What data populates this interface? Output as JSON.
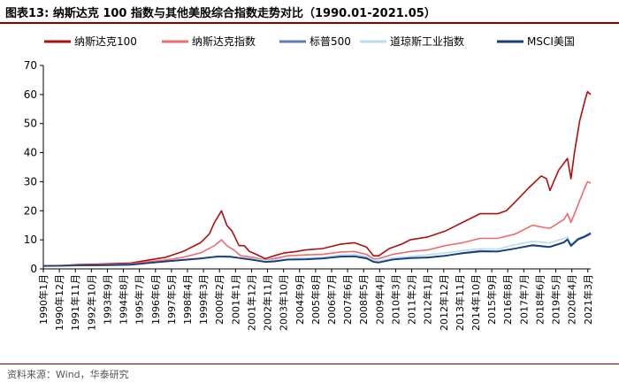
{
  "header": {
    "title": "图表13:  纳斯达克 100 指数与其他美股综合指数走势对比（1990.01-2021.05）"
  },
  "footer": {
    "source": "资料来源：Wind，华泰研究"
  },
  "chart_data": {
    "type": "line",
    "xlabel": "",
    "ylabel": "",
    "ylim": [
      0,
      70
    ],
    "yticks": [
      0,
      10,
      20,
      30,
      40,
      50,
      60,
      70
    ],
    "grid": false,
    "legend_position": "top",
    "x_tick_labels": [
      "1990年1月",
      "1990年12月",
      "1991年11月",
      "1992年10月",
      "1993年9月",
      "1994年8月",
      "1995年7月",
      "1996年6月",
      "1997年5月",
      "1998年4月",
      "1999年3月",
      "2000年2月",
      "2001年1月",
      "2001年12月",
      "2002年11月",
      "2003年10月",
      "2004年9月",
      "2005年8月",
      "2006年7月",
      "2007年6月",
      "2008年5月",
      "2009年4月",
      "2010年3月",
      "2011年2月",
      "2012年1月",
      "2012年12月",
      "2013年11月",
      "2014年10月",
      "2015年9月",
      "2016年8月",
      "2017年7月",
      "2018年6月",
      "2019年5月",
      "2020年4月",
      "2021年3月"
    ],
    "x_range": [
      1990.0,
      2021.33
    ],
    "series": [
      {
        "name": "纳斯达克100",
        "color": "#b00f0f",
        "width": 1.6,
        "points": [
          [
            1990.0,
            1.0
          ],
          [
            1991.0,
            1.1
          ],
          [
            1992.0,
            1.5
          ],
          [
            1993.0,
            1.6
          ],
          [
            1994.0,
            1.8
          ],
          [
            1995.0,
            2.0
          ],
          [
            1996.0,
            3.0
          ],
          [
            1997.0,
            4.0
          ],
          [
            1998.0,
            6.0
          ],
          [
            1999.0,
            9.0
          ],
          [
            1999.5,
            12.0
          ],
          [
            1999.8,
            16.0
          ],
          [
            2000.2,
            20.0
          ],
          [
            2000.5,
            15.0
          ],
          [
            2000.8,
            13.0
          ],
          [
            2001.2,
            8.0
          ],
          [
            2001.5,
            8.0
          ],
          [
            2001.8,
            6.0
          ],
          [
            2002.2,
            5.0
          ],
          [
            2002.7,
            3.5
          ],
          [
            2003.2,
            4.5
          ],
          [
            2003.8,
            5.5
          ],
          [
            2004.5,
            6.0
          ],
          [
            2005.0,
            6.5
          ],
          [
            2006.0,
            7.0
          ],
          [
            2007.0,
            8.5
          ],
          [
            2007.8,
            9.0
          ],
          [
            2008.5,
            7.5
          ],
          [
            2008.9,
            4.5
          ],
          [
            2009.2,
            4.5
          ],
          [
            2009.8,
            7.0
          ],
          [
            2010.5,
            8.5
          ],
          [
            2011.0,
            10.0
          ],
          [
            2012.0,
            11.0
          ],
          [
            2013.0,
            13.0
          ],
          [
            2014.0,
            16.0
          ],
          [
            2015.0,
            19.0
          ],
          [
            2016.0,
            19.0
          ],
          [
            2016.5,
            20.0
          ],
          [
            2017.0,
            23.0
          ],
          [
            2017.8,
            28.0
          ],
          [
            2018.5,
            32.0
          ],
          [
            2018.8,
            31.0
          ],
          [
            2019.0,
            27.0
          ],
          [
            2019.5,
            34.0
          ],
          [
            2020.0,
            38.0
          ],
          [
            2020.2,
            31.0
          ],
          [
            2020.4,
            40.0
          ],
          [
            2020.7,
            51.0
          ],
          [
            2021.0,
            58.0
          ],
          [
            2021.15,
            61.0
          ],
          [
            2021.33,
            60.0
          ]
        ]
      },
      {
        "name": "纳斯达克指数",
        "color": "#f06a6a",
        "width": 1.6,
        "points": [
          [
            1990.0,
            1.0
          ],
          [
            1992.0,
            1.3
          ],
          [
            1994.0,
            1.5
          ],
          [
            1995.0,
            1.7
          ],
          [
            1996.0,
            2.5
          ],
          [
            1997.0,
            3.0
          ],
          [
            1998.0,
            4.0
          ],
          [
            1999.0,
            5.5
          ],
          [
            1999.8,
            8.0
          ],
          [
            2000.2,
            10.0
          ],
          [
            2000.5,
            8.0
          ],
          [
            2000.9,
            6.5
          ],
          [
            2001.3,
            4.5
          ],
          [
            2002.0,
            4.0
          ],
          [
            2002.7,
            3.0
          ],
          [
            2003.2,
            3.5
          ],
          [
            2004.0,
            4.5
          ],
          [
            2005.0,
            4.8
          ],
          [
            2006.0,
            5.0
          ],
          [
            2007.0,
            5.8
          ],
          [
            2007.8,
            6.0
          ],
          [
            2008.5,
            5.0
          ],
          [
            2008.9,
            3.5
          ],
          [
            2009.2,
            3.5
          ],
          [
            2010.0,
            5.0
          ],
          [
            2011.0,
            6.0
          ],
          [
            2012.0,
            6.5
          ],
          [
            2013.0,
            8.0
          ],
          [
            2014.0,
            9.0
          ],
          [
            2015.0,
            10.5
          ],
          [
            2016.0,
            10.5
          ],
          [
            2017.0,
            12.0
          ],
          [
            2018.0,
            15.0
          ],
          [
            2018.9,
            14.0
          ],
          [
            2019.0,
            14.0
          ],
          [
            2019.8,
            17.0
          ],
          [
            2020.0,
            19.0
          ],
          [
            2020.2,
            16.0
          ],
          [
            2020.6,
            22.0
          ],
          [
            2021.0,
            28.0
          ],
          [
            2021.15,
            30.0
          ],
          [
            2021.33,
            29.5
          ]
        ]
      },
      {
        "name": "标普500",
        "color": "#5b7db5",
        "width": 1.6,
        "points": [
          [
            1990.0,
            1.0
          ],
          [
            1992.0,
            1.2
          ],
          [
            1994.0,
            1.3
          ],
          [
            1995.0,
            1.4
          ],
          [
            1996.0,
            2.0
          ],
          [
            1997.0,
            2.5
          ],
          [
            1998.0,
            3.0
          ],
          [
            1999.0,
            3.5
          ],
          [
            2000.0,
            4.2
          ],
          [
            2000.7,
            4.2
          ],
          [
            2001.5,
            3.5
          ],
          [
            2002.0,
            3.2
          ],
          [
            2002.7,
            2.4
          ],
          [
            2003.2,
            2.5
          ],
          [
            2004.0,
            3.2
          ],
          [
            2005.0,
            3.3
          ],
          [
            2006.0,
            3.6
          ],
          [
            2007.0,
            4.3
          ],
          [
            2007.8,
            4.4
          ],
          [
            2008.5,
            3.8
          ],
          [
            2008.9,
            2.5
          ],
          [
            2009.2,
            2.2
          ],
          [
            2010.0,
            3.3
          ],
          [
            2011.0,
            3.8
          ],
          [
            2012.0,
            4.0
          ],
          [
            2013.0,
            4.5
          ],
          [
            2014.0,
            5.5
          ],
          [
            2015.0,
            6.2
          ],
          [
            2016.0,
            6.0
          ],
          [
            2017.0,
            7.0
          ],
          [
            2018.0,
            8.0
          ],
          [
            2018.9,
            7.5
          ],
          [
            2019.0,
            7.5
          ],
          [
            2019.8,
            9.0
          ],
          [
            2020.0,
            10.0
          ],
          [
            2020.2,
            7.8
          ],
          [
            2020.6,
            10.0
          ],
          [
            2021.0,
            11.0
          ],
          [
            2021.33,
            12.0
          ]
        ]
      },
      {
        "name": "道琼斯工业指数",
        "color": "#b6ddf2",
        "width": 1.6,
        "points": [
          [
            1990.0,
            1.0
          ],
          [
            1992.0,
            1.2
          ],
          [
            1994.0,
            1.4
          ],
          [
            1995.0,
            1.5
          ],
          [
            1996.0,
            2.0
          ],
          [
            1997.0,
            2.6
          ],
          [
            1998.0,
            3.2
          ],
          [
            1999.0,
            3.6
          ],
          [
            2000.0,
            4.0
          ],
          [
            2000.7,
            4.0
          ],
          [
            2001.5,
            3.7
          ],
          [
            2002.0,
            3.5
          ],
          [
            2002.7,
            2.9
          ],
          [
            2003.2,
            3.0
          ],
          [
            2004.0,
            3.6
          ],
          [
            2005.0,
            3.7
          ],
          [
            2006.0,
            4.0
          ],
          [
            2007.0,
            4.8
          ],
          [
            2007.8,
            5.0
          ],
          [
            2008.5,
            4.3
          ],
          [
            2008.9,
            3.0
          ],
          [
            2009.2,
            2.7
          ],
          [
            2010.0,
            3.8
          ],
          [
            2011.0,
            4.3
          ],
          [
            2012.0,
            4.8
          ],
          [
            2013.0,
            5.5
          ],
          [
            2014.0,
            6.3
          ],
          [
            2015.0,
            6.9
          ],
          [
            2016.0,
            6.8
          ],
          [
            2017.0,
            8.3
          ],
          [
            2018.0,
            9.5
          ],
          [
            2018.9,
            9.0
          ],
          [
            2019.0,
            9.0
          ],
          [
            2019.8,
            10.4
          ],
          [
            2020.0,
            11.0
          ],
          [
            2020.2,
            8.5
          ],
          [
            2020.6,
            10.5
          ],
          [
            2021.0,
            11.5
          ],
          [
            2021.33,
            12.5
          ]
        ]
      },
      {
        "name": "MSCI美国",
        "color": "#163d7a",
        "width": 1.8,
        "points": [
          [
            1990.0,
            1.0
          ],
          [
            1992.0,
            1.2
          ],
          [
            1994.0,
            1.3
          ],
          [
            1995.0,
            1.45
          ],
          [
            1996.0,
            2.0
          ],
          [
            1997.0,
            2.6
          ],
          [
            1998.0,
            3.1
          ],
          [
            1999.0,
            3.6
          ],
          [
            2000.0,
            4.3
          ],
          [
            2000.7,
            4.2
          ],
          [
            2001.5,
            3.5
          ],
          [
            2002.0,
            3.1
          ],
          [
            2002.7,
            2.4
          ],
          [
            2003.2,
            2.6
          ],
          [
            2004.0,
            3.2
          ],
          [
            2005.0,
            3.3
          ],
          [
            2006.0,
            3.6
          ],
          [
            2007.0,
            4.2
          ],
          [
            2007.8,
            4.3
          ],
          [
            2008.5,
            3.6
          ],
          [
            2008.9,
            2.4
          ],
          [
            2009.2,
            2.2
          ],
          [
            2010.0,
            3.2
          ],
          [
            2011.0,
            3.7
          ],
          [
            2012.0,
            3.9
          ],
          [
            2013.0,
            4.5
          ],
          [
            2014.0,
            5.4
          ],
          [
            2015.0,
            6.0
          ],
          [
            2016.0,
            6.0
          ],
          [
            2017.0,
            7.0
          ],
          [
            2018.0,
            8.2
          ],
          [
            2018.9,
            7.6
          ],
          [
            2019.0,
            7.6
          ],
          [
            2019.8,
            9.2
          ],
          [
            2020.0,
            10.2
          ],
          [
            2020.2,
            8.0
          ],
          [
            2020.6,
            10.2
          ],
          [
            2021.0,
            11.2
          ],
          [
            2021.33,
            12.3
          ]
        ]
      }
    ]
  }
}
